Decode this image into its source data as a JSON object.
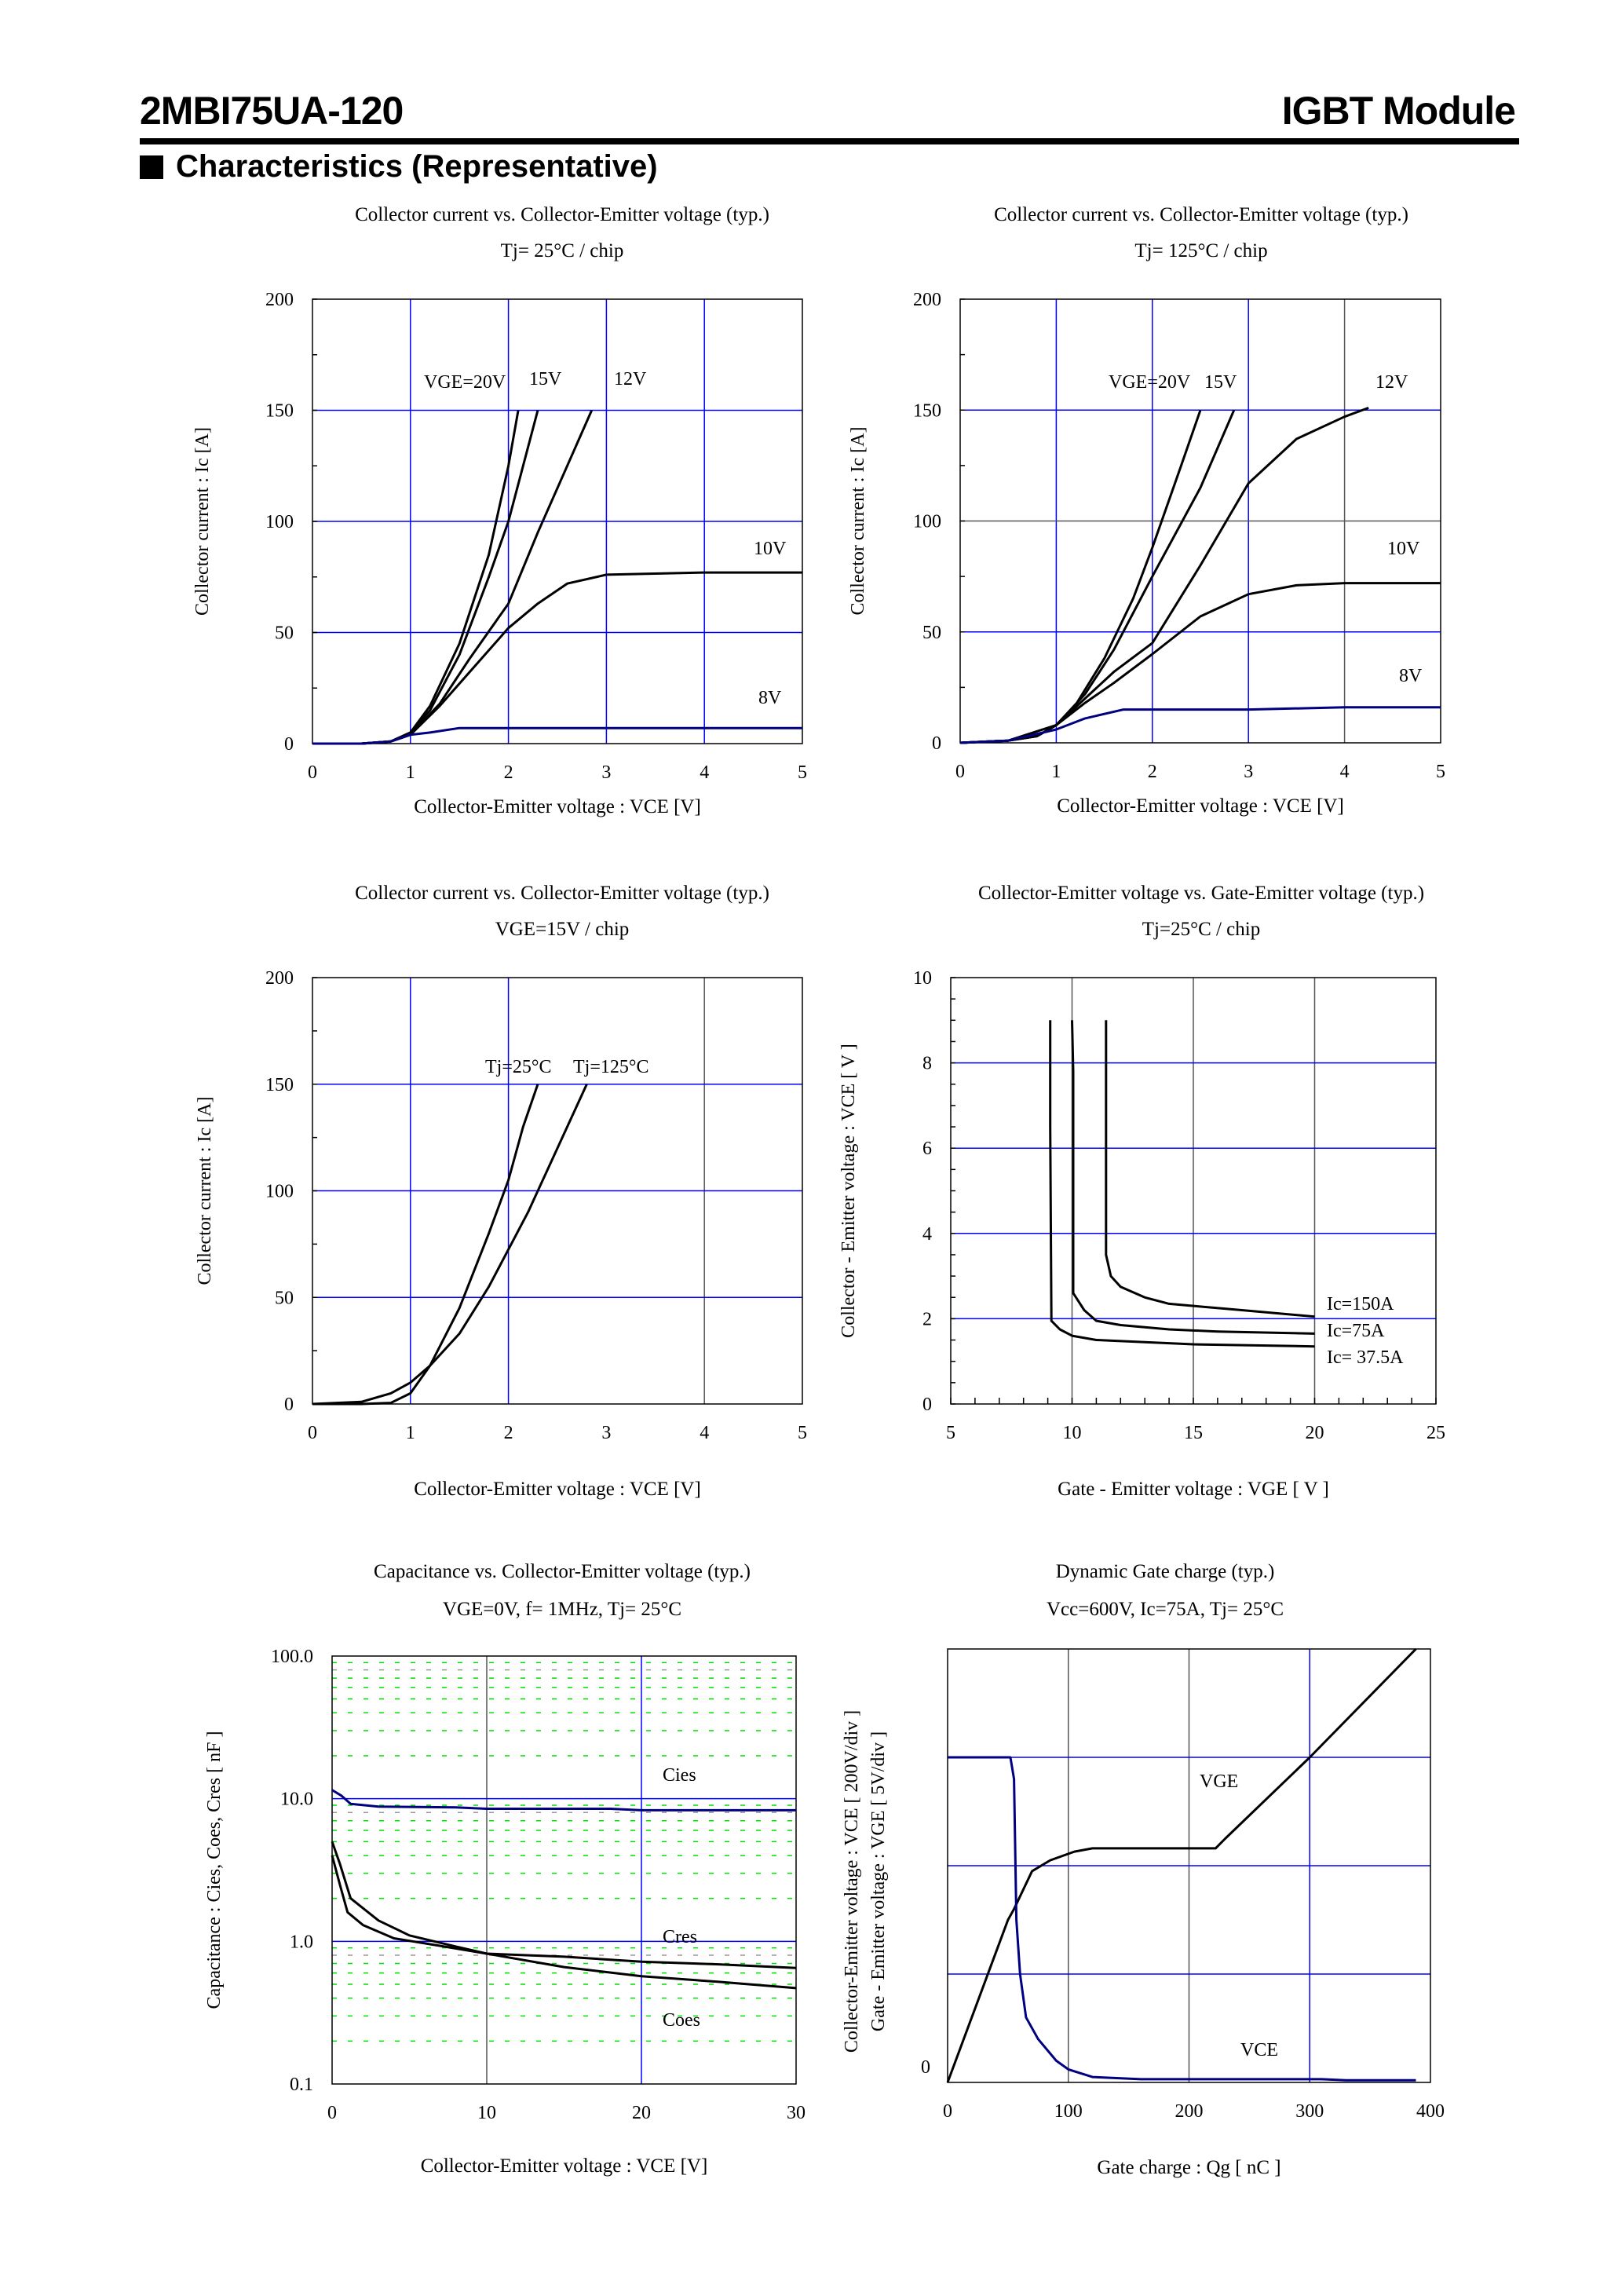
{
  "header": {
    "part_number": "2MBI75UA-120",
    "product_type": "IGBT Module"
  },
  "section_title": "Characteristics (Representative)",
  "chart_data": [
    {
      "type": "line",
      "title": "Collector current vs. Collector-Emitter voltage (typ.)",
      "subtitle": "Tj= 25°C / chip",
      "xlabel": "Collector-Emitter voltage : VCE [V]",
      "ylabel": "Collector current : Ic [A]",
      "xlim": [
        0,
        5
      ],
      "ylim": [
        0,
        200
      ],
      "yscale": "linear",
      "xticks": [
        "0",
        "1",
        "2",
        "3",
        "4",
        "5"
      ],
      "yticks": [
        "0",
        "50",
        "100",
        "150",
        "200"
      ],
      "grid": true,
      "series": [
        {
          "name": "VGE=20V",
          "color": "#000000",
          "x": [
            0,
            0.5,
            0.8,
            1,
            1.2,
            1.5,
            1.8,
            2.0,
            2.1
          ],
          "y": [
            0,
            0,
            1,
            5,
            17,
            45,
            85,
            125,
            150
          ]
        },
        {
          "name": "15V",
          "color": "#000000",
          "x": [
            0,
            0.5,
            0.8,
            1,
            1.2,
            1.5,
            1.8,
            2.0,
            2.3
          ],
          "y": [
            0,
            0,
            1,
            5,
            15,
            40,
            75,
            100,
            150
          ]
        },
        {
          "name": "12V",
          "color": "#000000",
          "x": [
            0,
            0.5,
            0.8,
            1,
            1.3,
            1.6,
            2.0,
            2.3,
            2.6,
            2.85
          ],
          "y": [
            0,
            0,
            1,
            4,
            18,
            38,
            63,
            95,
            125,
            150
          ]
        },
        {
          "name": "10V",
          "color": "#000000",
          "x": [
            0,
            0.5,
            0.8,
            1,
            1.3,
            1.6,
            2.0,
            2.3,
            2.6,
            3.0,
            4.0,
            5.0
          ],
          "y": [
            0,
            0,
            1,
            4,
            17,
            32,
            52,
            63,
            72,
            76,
            77,
            77
          ]
        },
        {
          "name": "8V",
          "color": "#000080",
          "x": [
            0,
            0.5,
            0.8,
            1,
            1.2,
            1.5,
            2.0,
            5.0
          ],
          "y": [
            0,
            0,
            1,
            4,
            5,
            7,
            7,
            7
          ]
        }
      ]
    },
    {
      "type": "line",
      "title": "Collector current vs. Collector-Emitter voltage (typ.)",
      "subtitle": "Tj= 125°C / chip",
      "xlabel": "Collector-Emitter voltage : VCE [V]",
      "ylabel": "Collector current : Ic [A]",
      "xlim": [
        0,
        5
      ],
      "ylim": [
        0,
        200
      ],
      "yscale": "linear",
      "xticks": [
        "0",
        "1",
        "2",
        "3",
        "4",
        "5"
      ],
      "yticks": [
        "0",
        "50",
        "100",
        "150",
        "200"
      ],
      "grid": true,
      "series": [
        {
          "name": "VGE=20V",
          "color": "#000000",
          "x": [
            0,
            0.5,
            0.8,
            1,
            1.2,
            1.5,
            1.8,
            2.0,
            2.3,
            2.5
          ],
          "y": [
            0,
            1,
            3,
            8,
            17,
            38,
            65,
            88,
            125,
            150
          ]
        },
        {
          "name": "15V",
          "color": "#000000",
          "x": [
            0,
            0.5,
            0.8,
            1,
            1.3,
            1.6,
            2.0,
            2.5,
            2.85
          ],
          "y": [
            0,
            1,
            3,
            8,
            22,
            42,
            75,
            115,
            150
          ]
        },
        {
          "name": "12V",
          "color": "#000000",
          "x": [
            0,
            0.5,
            0.8,
            1,
            1.3,
            1.6,
            2.0,
            2.5,
            3.0,
            3.5,
            4.0,
            4.25
          ],
          "y": [
            0,
            1,
            3,
            8,
            20,
            32,
            45,
            80,
            117,
            137,
            147,
            151
          ]
        },
        {
          "name": "10V",
          "color": "#000000",
          "x": [
            0,
            0.5,
            1,
            1.3,
            1.6,
            2.0,
            2.5,
            3.0,
            3.5,
            4.0,
            5.0
          ],
          "y": [
            0,
            1,
            8,
            18,
            27,
            40,
            57,
            67,
            71,
            72,
            72
          ]
        },
        {
          "name": "8V",
          "color": "#000080",
          "x": [
            0,
            0.5,
            1,
            1.3,
            1.7,
            2.0,
            3.0,
            4.0,
            5.0
          ],
          "y": [
            0,
            1,
            6,
            11,
            15,
            15,
            15,
            16,
            16
          ]
        }
      ]
    },
    {
      "type": "line",
      "title": "Collector current vs. Collector-Emitter voltage (typ.)",
      "subtitle": "VGE=15V  / chip",
      "xlabel": "Collector-Emitter voltage : VCE [V]",
      "ylabel": "Collector current : Ic [A]",
      "xlim": [
        0,
        5
      ],
      "ylim": [
        0,
        200
      ],
      "yscale": "linear",
      "xticks": [
        "0",
        "1",
        "2",
        "3",
        "4",
        "5"
      ],
      "yticks": [
        "0",
        "50",
        "100",
        "150",
        "200"
      ],
      "grid": true,
      "series": [
        {
          "name": "Tj=25°C",
          "color": "#000000",
          "x": [
            0,
            0.5,
            0.8,
            1,
            1.2,
            1.5,
            1.8,
            2.0,
            2.15,
            2.3
          ],
          "y": [
            0,
            0,
            0.5,
            5,
            18,
            45,
            80,
            105,
            130,
            150
          ]
        },
        {
          "name": "Tj=125°C",
          "color": "#000000",
          "x": [
            0,
            0.5,
            0.8,
            1,
            1.2,
            1.5,
            1.8,
            2.2,
            2.5,
            2.8
          ],
          "y": [
            0,
            1,
            5,
            10,
            18,
            33,
            55,
            90,
            120,
            150
          ]
        }
      ]
    },
    {
      "type": "line",
      "title": "Collector-Emitter voltage  vs. Gate-Emitter voltage (typ.)",
      "subtitle": "Tj=25°C / chip",
      "xlabel": "Gate - Emitter voltage  :  VGE  [ V ]",
      "ylabel": "Collector - Emitter voltage  :  VCE  [ V ]",
      "xlim": [
        5,
        25
      ],
      "ylim": [
        0,
        10
      ],
      "yscale": "linear",
      "xticks": [
        "5",
        "10",
        "15",
        "20",
        "25"
      ],
      "yticks": [
        "0",
        "2",
        "4",
        "6",
        "8",
        "10"
      ],
      "grid": true,
      "series": [
        {
          "name": "Ic=150A",
          "color": "#000000",
          "x": [
            11.4,
            11.4,
            11.6,
            12,
            13,
            14,
            15,
            17,
            20
          ],
          "y": [
            9,
            3.5,
            3,
            2.75,
            2.5,
            2.35,
            2.3,
            2.2,
            2.05
          ]
        },
        {
          "name": "Ic=75A",
          "color": "#000000",
          "x": [
            10,
            10.05,
            10.05,
            10.5,
            11,
            12,
            14,
            16,
            20
          ],
          "y": [
            9,
            7.8,
            2.6,
            2.2,
            1.95,
            1.85,
            1.75,
            1.7,
            1.65
          ]
        },
        {
          "name": "Ic= 37.5A",
          "color": "#000000",
          "x": [
            9.1,
            9.1,
            9.15,
            9.5,
            10,
            11,
            13,
            15,
            20
          ],
          "y": [
            9,
            6.5,
            1.95,
            1.75,
            1.6,
            1.5,
            1.45,
            1.4,
            1.35
          ]
        }
      ]
    },
    {
      "type": "line",
      "title": "Capacitance  vs.  Collector-Emitter voltage  (typ.)",
      "subtitle": "VGE=0V,  f= 1MHz,  Tj= 25°C",
      "xlabel": "Collector-Emitter voltage : VCE [V]",
      "ylabel": "Capacitance  :  Cies, Coes, Cres  [ nF ]",
      "xlim": [
        0,
        30
      ],
      "ylim": [
        0.1,
        100
      ],
      "yscale": "log",
      "xticks": [
        "0",
        "10",
        "20",
        "30"
      ],
      "yticks": [
        "0.1",
        "1.0",
        "10.0",
        "100.0"
      ],
      "grid": true,
      "series": [
        {
          "name": "Cies",
          "color": "#000080",
          "x": [
            0,
            0.6,
            1.2,
            3,
            8,
            10,
            18,
            20,
            30
          ],
          "y": [
            11.5,
            10.5,
            9.2,
            8.8,
            8.7,
            8.5,
            8.5,
            8.3,
            8.3
          ]
        },
        {
          "name": "Cres",
          "color": "#000000",
          "x": [
            0,
            0.5,
            1.2,
            3,
            5,
            8,
            10,
            15,
            20,
            25,
            30
          ],
          "y": [
            5,
            3.5,
            2,
            1.4,
            1.1,
            0.92,
            0.82,
            0.78,
            0.72,
            0.69,
            0.65
          ]
        },
        {
          "name": "Coes",
          "color": "#000000",
          "x": [
            0,
            0.5,
            1,
            2,
            4,
            7,
            10,
            15,
            20,
            25,
            30
          ],
          "y": [
            4,
            2.5,
            1.6,
            1.3,
            1.05,
            0.93,
            0.82,
            0.66,
            0.57,
            0.52,
            0.47
          ]
        }
      ]
    },
    {
      "type": "line",
      "title": "Dynamic Gate charge  (typ.)",
      "subtitle": "Vcc=600V,  Ic=75A, Tj= 25°C",
      "xlabel": "Gate charge  :  Qg  [ nC ]",
      "ylabel": "Collector-Emitter voltage : VCE [ 200V/div ]",
      "ylabel2": "Gate - Emitter voltage  :  VGE      [ 5V/div ]",
      "xlim": [
        0,
        400
      ],
      "ylim": [
        0,
        4
      ],
      "yscale": "linear",
      "xticks": [
        "0",
        "100",
        "200",
        "300",
        "400"
      ],
      "yticks": [
        "0"
      ],
      "grid": true,
      "series": [
        {
          "name": "VGE",
          "color": "#000000",
          "x": [
            0,
            50,
            55,
            70,
            85,
            105,
            120,
            222,
            230,
            300,
            388
          ],
          "y": [
            0,
            1.5,
            1.6,
            1.95,
            2.05,
            2.13,
            2.16,
            2.16,
            2.25,
            3,
            4
          ]
        },
        {
          "name": "VCE",
          "color": "#000080",
          "x": [
            0,
            52,
            55,
            57,
            60,
            65,
            75,
            90,
            100,
            120,
            160,
            310,
            330,
            388
          ],
          "y": [
            3,
            3,
            2.8,
            1.5,
            1,
            0.6,
            0.4,
            0.2,
            0.12,
            0.05,
            0.03,
            0.03,
            0.02,
            0.02
          ]
        }
      ]
    }
  ]
}
